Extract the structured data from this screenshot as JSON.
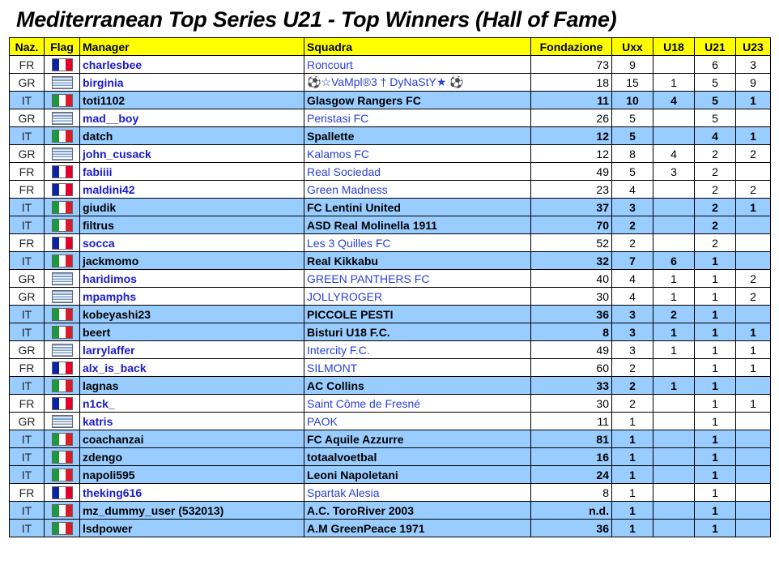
{
  "title": "Mediterranean Top Series U21 - Top Winners (Hall of Fame)",
  "columns": {
    "naz": "Naz.",
    "flag": "Flag",
    "manager": "Manager",
    "squadra": "Squadra",
    "fondazione": "Fondazione",
    "uxx": "Uxx",
    "u18": "U18",
    "u21": "U21",
    "u23": "U23"
  },
  "colors": {
    "header_bg": "#ffff00",
    "row_white": "#ffffff",
    "row_blue": "#99ccff",
    "manager_link": "#1a1acc",
    "team_link": "#2a3fd6"
  },
  "rows": [
    {
      "naz": "FR",
      "flag": "flag-FR",
      "manager": "charlesbee",
      "squadra": "Roncourt",
      "fondazione": "73",
      "uxx": "9",
      "u18": "",
      "u21": "6",
      "u23": "3"
    },
    {
      "naz": "GR",
      "flag": "flag-GR",
      "manager": "birginia",
      "squadra": "⚽☆VaMpl®3 † DyNaStY★ ⚽",
      "fondazione": "18",
      "uxx": "15",
      "u18": "1",
      "u21": "5",
      "u23": "9"
    },
    {
      "naz": "IT",
      "flag": "flag-IT",
      "manager": "toti1102",
      "squadra": "Glasgow Rangers FC",
      "fondazione": "11",
      "uxx": "10",
      "u18": "4",
      "u21": "5",
      "u23": "1"
    },
    {
      "naz": "GR",
      "flag": "flag-GR",
      "manager": "mad__boy",
      "squadra": "Peristasi FC",
      "fondazione": "26",
      "uxx": "5",
      "u18": "",
      "u21": "5",
      "u23": ""
    },
    {
      "naz": "IT",
      "flag": "flag-IT",
      "manager": "datch",
      "squadra": "Spallette",
      "fondazione": "12",
      "uxx": "5",
      "u18": "",
      "u21": "4",
      "u23": "1"
    },
    {
      "naz": "GR",
      "flag": "flag-GR",
      "manager": "john_cusack",
      "squadra": "Kalamos FC",
      "fondazione": "12",
      "uxx": "8",
      "u18": "4",
      "u21": "2",
      "u23": "2"
    },
    {
      "naz": "FR",
      "flag": "flag-FR",
      "manager": "fabiiii",
      "squadra": "Real Sociedad",
      "fondazione": "49",
      "uxx": "5",
      "u18": "3",
      "u21": "2",
      "u23": ""
    },
    {
      "naz": "FR",
      "flag": "flag-FR",
      "manager": "maldini42",
      "squadra": "Green Madness",
      "fondazione": "23",
      "uxx": "4",
      "u18": "",
      "u21": "2",
      "u23": "2"
    },
    {
      "naz": "IT",
      "flag": "flag-IT",
      "manager": "giudik",
      "squadra": "FC Lentini United",
      "fondazione": "37",
      "uxx": "3",
      "u18": "",
      "u21": "2",
      "u23": "1"
    },
    {
      "naz": "IT",
      "flag": "flag-IT",
      "manager": "filtrus",
      "squadra": "ASD Real Molinella 1911",
      "fondazione": "70",
      "uxx": "2",
      "u18": "",
      "u21": "2",
      "u23": ""
    },
    {
      "naz": "FR",
      "flag": "flag-FR",
      "manager": "socca",
      "squadra": "Les 3 Quilles FC",
      "fondazione": "52",
      "uxx": "2",
      "u18": "",
      "u21": "2",
      "u23": ""
    },
    {
      "naz": "IT",
      "flag": "flag-IT",
      "manager": "jackmomo",
      "squadra": "Real Kikkabu",
      "fondazione": "32",
      "uxx": "7",
      "u18": "6",
      "u21": "1",
      "u23": ""
    },
    {
      "naz": "GR",
      "flag": "flag-GR",
      "manager": "haridimos",
      "squadra": "GREEN PANTHERS FC",
      "fondazione": "40",
      "uxx": "4",
      "u18": "1",
      "u21": "1",
      "u23": "2"
    },
    {
      "naz": "GR",
      "flag": "flag-GR",
      "manager": "mpamphs",
      "squadra": "JOLLYROGER",
      "fondazione": "30",
      "uxx": "4",
      "u18": "1",
      "u21": "1",
      "u23": "2"
    },
    {
      "naz": "IT",
      "flag": "flag-IT",
      "manager": "kobeyashi23",
      "squadra": "PICCOLE PESTI",
      "fondazione": "36",
      "uxx": "3",
      "u18": "2",
      "u21": "1",
      "u23": ""
    },
    {
      "naz": "IT",
      "flag": "flag-IT",
      "manager": "beert",
      "squadra": "Bisturi U18 F.C.",
      "fondazione": "8",
      "uxx": "3",
      "u18": "1",
      "u21": "1",
      "u23": "1"
    },
    {
      "naz": "GR",
      "flag": "flag-GR",
      "manager": "larrylaffer",
      "squadra": "Intercity F.C.",
      "fondazione": "49",
      "uxx": "3",
      "u18": "1",
      "u21": "1",
      "u23": "1"
    },
    {
      "naz": "FR",
      "flag": "flag-FR",
      "manager": "alx_is_back",
      "squadra": "SILMONT",
      "fondazione": "60",
      "uxx": "2",
      "u18": "",
      "u21": "1",
      "u23": "1"
    },
    {
      "naz": "IT",
      "flag": "flag-IT",
      "manager": "lagnas",
      "squadra": "AC Collins",
      "fondazione": "33",
      "uxx": "2",
      "u18": "1",
      "u21": "1",
      "u23": ""
    },
    {
      "naz": "FR",
      "flag": "flag-FR",
      "manager": "n1ck_",
      "squadra": "Saint Côme de Fresné",
      "fondazione": "30",
      "uxx": "2",
      "u18": "",
      "u21": "1",
      "u23": "1"
    },
    {
      "naz": "GR",
      "flag": "flag-GR",
      "manager": "katris",
      "squadra": "PAOK",
      "fondazione": "11",
      "uxx": "1",
      "u18": "",
      "u21": "1",
      "u23": ""
    },
    {
      "naz": "IT",
      "flag": "flag-IT",
      "manager": "coachanzai",
      "squadra": "FC Aquile Azzurre",
      "fondazione": "81",
      "uxx": "1",
      "u18": "",
      "u21": "1",
      "u23": ""
    },
    {
      "naz": "IT",
      "flag": "flag-IT",
      "manager": "zdengo",
      "squadra": "totaalvoetbal",
      "fondazione": "16",
      "uxx": "1",
      "u18": "",
      "u21": "1",
      "u23": ""
    },
    {
      "naz": "IT",
      "flag": "flag-IT",
      "manager": "napoli595",
      "squadra": "Leoni Napoletani",
      "fondazione": "24",
      "uxx": "1",
      "u18": "",
      "u21": "1",
      "u23": ""
    },
    {
      "naz": "FR",
      "flag": "flag-FR",
      "manager": "theking616",
      "squadra": "Spartak Alesia",
      "fondazione": "8",
      "uxx": "1",
      "u18": "",
      "u21": "1",
      "u23": ""
    },
    {
      "naz": "IT",
      "flag": "flag-IT",
      "manager": "mz_dummy_user (532013)",
      "squadra": "A.C. ToroRiver 2003",
      "fondazione": "n.d.",
      "uxx": "1",
      "u18": "",
      "u21": "1",
      "u23": ""
    },
    {
      "naz": "IT",
      "flag": "flag-IT",
      "manager": "lsdpower",
      "squadra": "A.M GreenPeace 1971",
      "fondazione": "36",
      "uxx": "1",
      "u18": "",
      "u21": "1",
      "u23": ""
    }
  ]
}
